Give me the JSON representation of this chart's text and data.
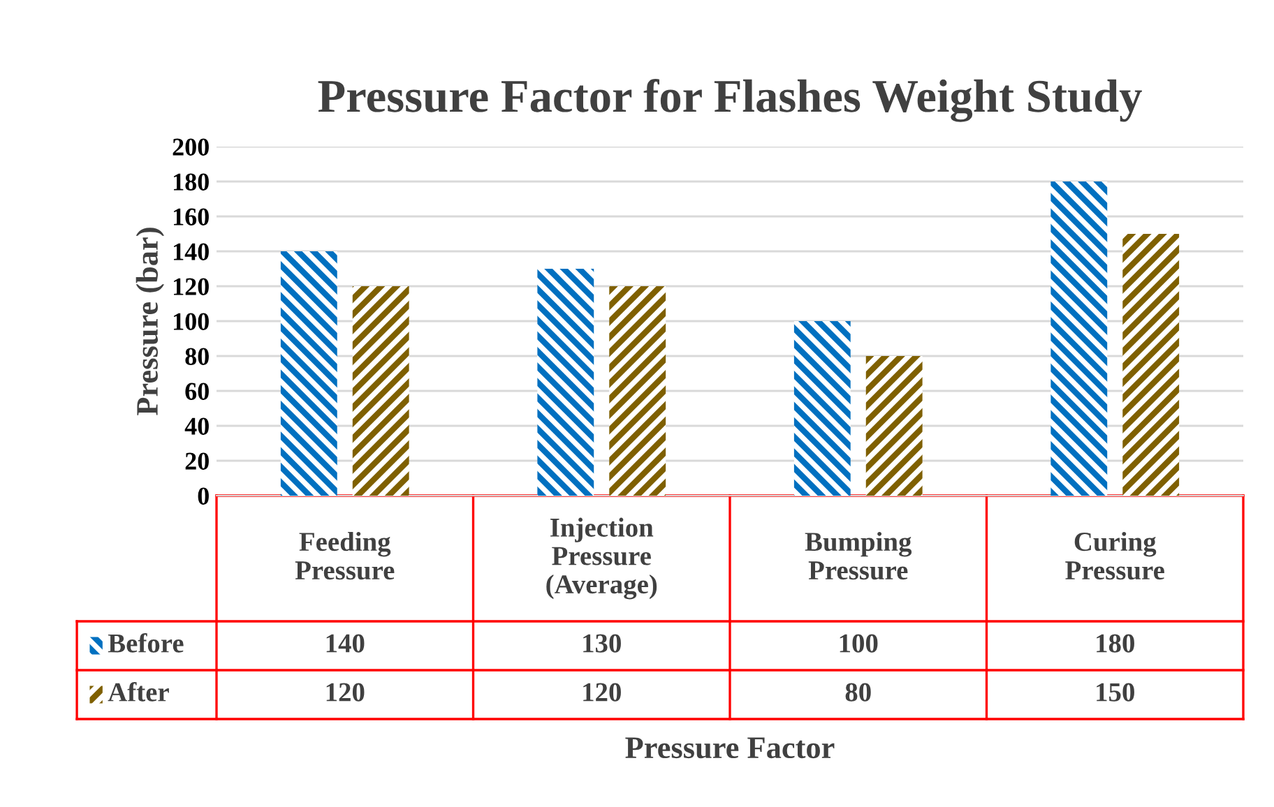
{
  "chart_data": {
    "type": "bar",
    "title": "Pressure Factor for Flashes Weight Study",
    "xlabel": "Pressure Factor",
    "ylabel": "Pressure (bar)",
    "categories": [
      "Feeding\nPressure",
      "Injection\nPressure\n(Average)",
      "Bumping\nPressure",
      "Curing\nPressure"
    ],
    "series": [
      {
        "name": "Before",
        "color": "#0070c0",
        "values": [
          140,
          130,
          100,
          180
        ]
      },
      {
        "name": "After",
        "color": "#7f6000",
        "values": [
          120,
          120,
          80,
          150
        ]
      }
    ],
    "ylim": [
      0,
      200
    ],
    "yticks": [
      0,
      20,
      40,
      60,
      80,
      100,
      120,
      140,
      160,
      180,
      200
    ],
    "grid": "y",
    "data_labels": true,
    "legend": "bottom left"
  }
}
